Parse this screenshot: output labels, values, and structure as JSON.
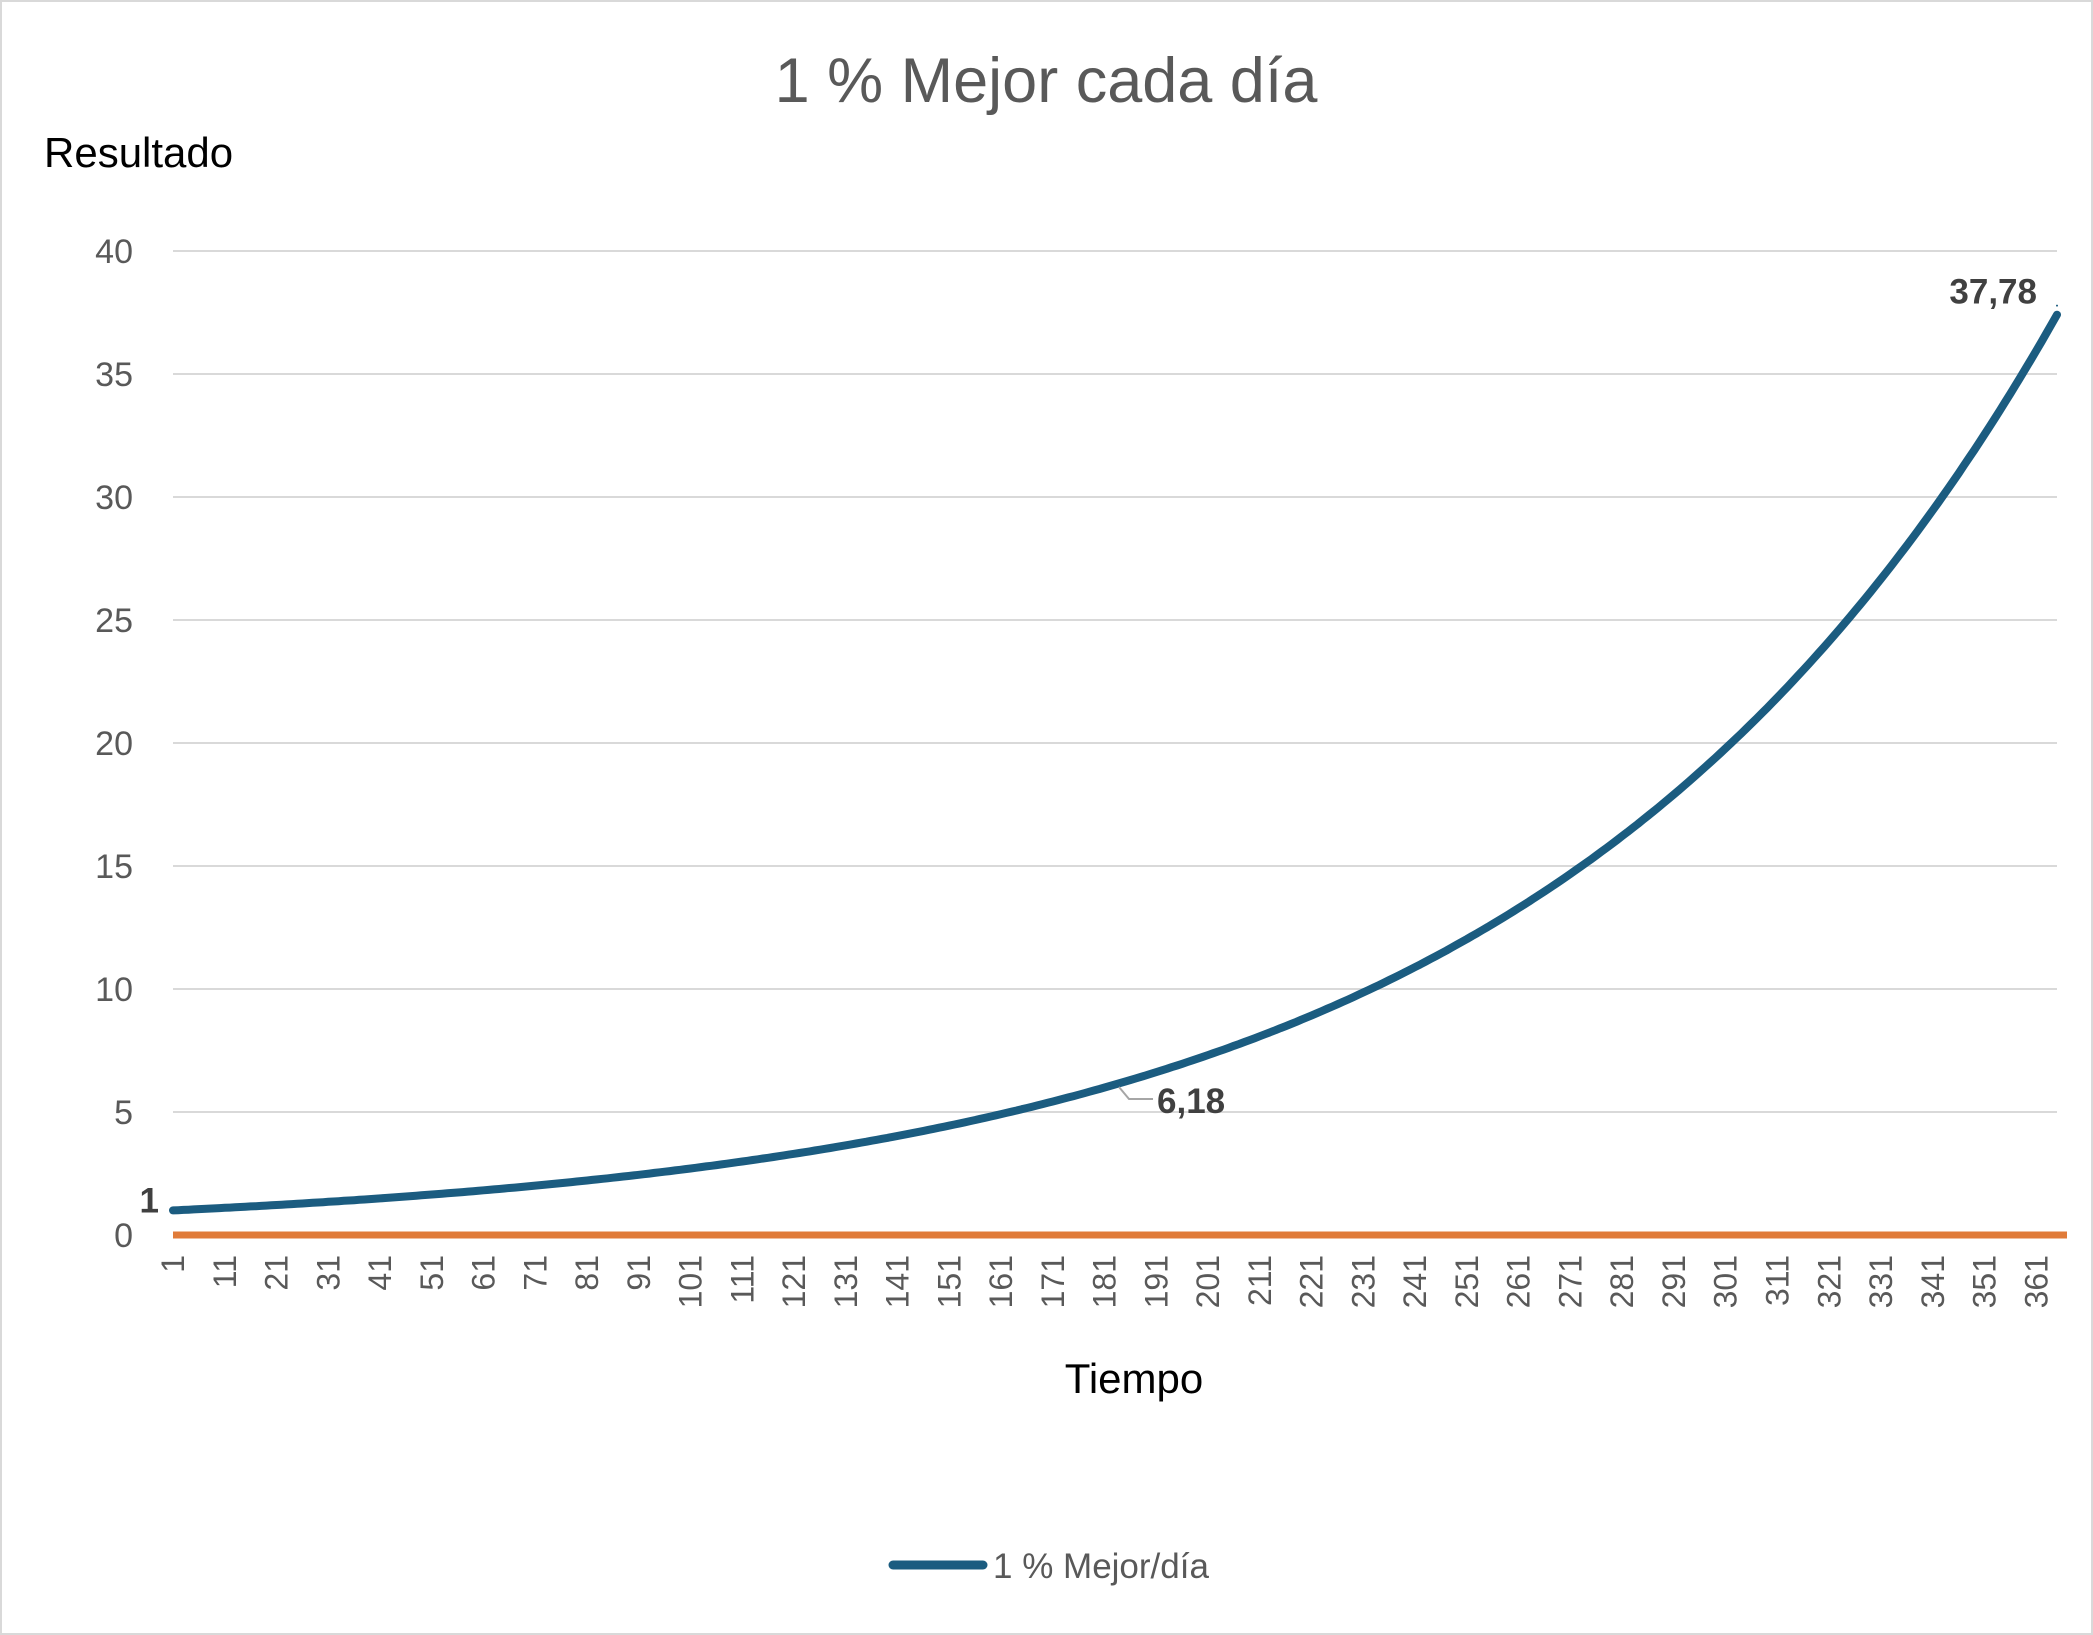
{
  "chart_data": {
    "type": "line",
    "title": "1 % Mejor cada día",
    "xlabel": "Tiempo",
    "ylabel": "Resultado",
    "x_range": [
      1,
      365
    ],
    "ylim": [
      0,
      40
    ],
    "y_ticks": [
      "0",
      "5",
      "10",
      "15",
      "20",
      "25",
      "30",
      "35",
      "40"
    ],
    "x_tick_labels": [
      "1",
      "11",
      "21",
      "31",
      "41",
      "51",
      "61",
      "71",
      "81",
      "91",
      "101",
      "111",
      "121",
      "131",
      "141",
      "151",
      "161",
      "171",
      "181",
      "191",
      "201",
      "211",
      "221",
      "231",
      "241",
      "251",
      "261",
      "271",
      "281",
      "291",
      "301",
      "311",
      "321",
      "331",
      "341",
      "351",
      "361"
    ],
    "grid": true,
    "legend_position": "bottom",
    "series": [
      {
        "name": "1 % Mejor/día",
        "color": "#1b5c80",
        "growth_per_day": 1.01,
        "points": [
          {
            "x": 1,
            "y": 1
          },
          {
            "x": 31,
            "y": 1.35
          },
          {
            "x": 61,
            "y": 1.82
          },
          {
            "x": 91,
            "y": 2.45
          },
          {
            "x": 121,
            "y": 3.3
          },
          {
            "x": 151,
            "y": 4.45
          },
          {
            "x": 183,
            "y": 6.18
          },
          {
            "x": 211,
            "y": 8.08
          },
          {
            "x": 241,
            "y": 10.89
          },
          {
            "x": 271,
            "y": 14.68
          },
          {
            "x": 301,
            "y": 19.79
          },
          {
            "x": 331,
            "y": 26.68
          },
          {
            "x": 365,
            "y": 37.78
          }
        ]
      },
      {
        "color": "#e07b39",
        "points": [
          {
            "x": 1,
            "y": 0
          },
          {
            "x": 365,
            "y": 0
          }
        ]
      }
    ],
    "data_labels": [
      {
        "x": 1,
        "y": 1,
        "text": "1"
      },
      {
        "x": 183,
        "y": 6.18,
        "text": "6,18"
      },
      {
        "x": 365,
        "y": 37.78,
        "text": "37,78"
      }
    ]
  }
}
